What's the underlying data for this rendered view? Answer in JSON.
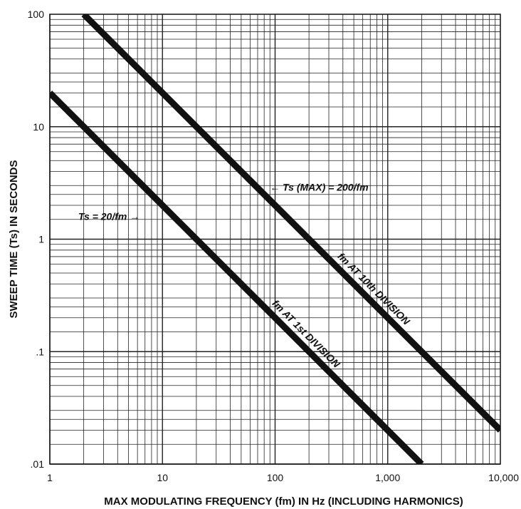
{
  "chart_data": {
    "type": "line",
    "xlabel": "MAX MODULATING FREQUENCY (fm) IN Hz (INCLUDING HARMONICS)",
    "ylabel": "SWEEP TIME (Ts) IN SECONDS",
    "xscale": "log",
    "yscale": "log",
    "xlim": [
      1,
      10000
    ],
    "ylim": [
      0.01,
      100
    ],
    "grid": true,
    "x_tick_labels": [
      "1",
      "10",
      "100",
      "1,000",
      "10,000"
    ],
    "x_tick_values": [
      1,
      10,
      100,
      1000,
      10000
    ],
    "y_tick_labels": [
      "100",
      "10",
      "1",
      ".1",
      ".01"
    ],
    "y_tick_values": [
      100,
      10,
      1,
      0.1,
      0.01
    ],
    "series": [
      {
        "name": "Ts = 20/fm",
        "x": [
          1,
          2000
        ],
        "y": [
          20,
          0.01
        ],
        "label_on_line": "fm AT 1st DIVISION",
        "annotation": "Ts = 20/fm →"
      },
      {
        "name": "Ts (MAX) = 200/fm",
        "x": [
          2,
          10000
        ],
        "y": [
          100,
          0.02
        ],
        "label_on_line": "fm AT 10th DIVISION",
        "annotation": "← Ts (MAX) = 200/fm"
      }
    ]
  }
}
